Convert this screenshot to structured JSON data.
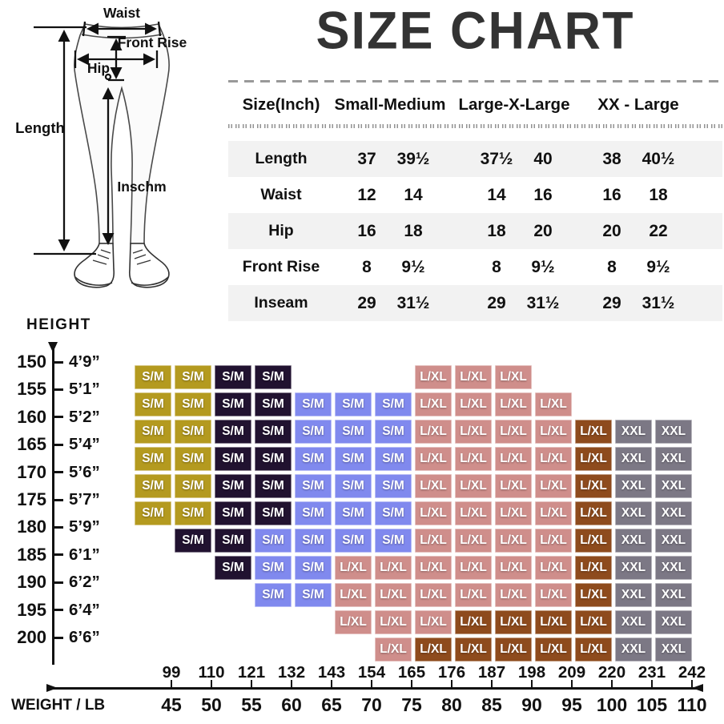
{
  "title": "SIZE CHART",
  "diagram_labels": {
    "waist": "Waist",
    "front_rise": "Front Rise",
    "hip": "Hip",
    "length": "Length",
    "inseam": "Inschm"
  },
  "chart_data": [
    {
      "type": "table",
      "name": "size-table",
      "header_col": "Size(Inch)",
      "groups": [
        "Small-Medium",
        "Large-X-Large",
        "XX - Large"
      ],
      "rows": [
        {
          "label": "Length",
          "values": [
            "37",
            "39½",
            "37½",
            "40",
            "38",
            "40½"
          ]
        },
        {
          "label": "Waist",
          "values": [
            "12",
            "14",
            "14",
            "16",
            "16",
            "18"
          ]
        },
        {
          "label": "Hip",
          "values": [
            "16",
            "18",
            "18",
            "20",
            "20",
            "22"
          ]
        },
        {
          "label": "Front Rise",
          "values": [
            "8",
            "9½",
            "8",
            "9½",
            "8",
            "9½"
          ]
        },
        {
          "label": "Inseam",
          "values": [
            "29",
            "31½",
            "29",
            "31½",
            "29",
            "31½"
          ]
        }
      ]
    },
    {
      "type": "heatmap",
      "name": "fit-chart",
      "y_axis": {
        "title": "HEIGHT",
        "ticks": [
          {
            "cm": "150",
            "ft": "4’9”"
          },
          {
            "cm": "155",
            "ft": "5’1”"
          },
          {
            "cm": "160",
            "ft": "5’2”"
          },
          {
            "cm": "165",
            "ft": "5’4”"
          },
          {
            "cm": "170",
            "ft": "5’6”"
          },
          {
            "cm": "175",
            "ft": "5’7”"
          },
          {
            "cm": "180",
            "ft": "5’9”"
          },
          {
            "cm": "185",
            "ft": "6’1”"
          },
          {
            "cm": "190",
            "ft": "6’2”"
          },
          {
            "cm": "195",
            "ft": "6’4”"
          },
          {
            "cm": "200",
            "ft": "6’6”"
          }
        ]
      },
      "x_axis": {
        "title": "WEIGHT / LB",
        "lb": [
          "99",
          "110",
          "121",
          "132",
          "143",
          "154",
          "165",
          "176",
          "187",
          "198",
          "209",
          "220",
          "231",
          "242"
        ],
        "kg": [
          "45",
          "50",
          "55",
          "60",
          "65",
          "70",
          "75",
          "80",
          "85",
          "90",
          "95",
          "100",
          "105",
          "110"
        ]
      },
      "sizes": {
        "Y": {
          "label": "S/M",
          "color": "#b49a1f"
        },
        "N": {
          "label": "S/M",
          "color": "#211230"
        },
        "B": {
          "label": "S/M",
          "color": "#8089ee"
        },
        "P": {
          "label": "L/XL",
          "color": "#cf8e8b"
        },
        "R": {
          "label": "L/XL",
          "color": "#8e4b1d"
        },
        "G": {
          "label": "XXL",
          "color": "#7c7885"
        }
      },
      "grid": [
        "YYNN...PPP....",
        "YYNNBBBPPPP...",
        "YYNNBBBPPPPRGG",
        "YYNNBBBPPPPRGG",
        "YYNNBBBPPPPRGG",
        "YYNNBBBPPPPRGG",
        ".NNBBBBPPPPRGG",
        "..NBBPPPPPPRGG",
        "...BBPPPPPPRGG",
        ".....PPPRRRRGG",
        "......PRRRRRGG"
      ]
    }
  ]
}
